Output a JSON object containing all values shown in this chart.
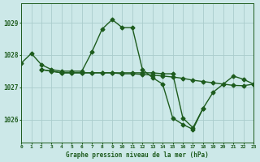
{
  "title": "Graphe pression niveau de la mer (hPa)",
  "bg_color": "#cce8e8",
  "grid_color": "#aacccc",
  "line_color": "#1e5c1e",
  "marker": "D",
  "marker_size": 2.5,
  "line_width": 1.0,
  "xlim": [
    0,
    23
  ],
  "ylim": [
    1025.3,
    1029.6
  ],
  "yticks": [
    1026,
    1027,
    1028,
    1029
  ],
  "xticks": [
    0,
    1,
    2,
    3,
    4,
    5,
    6,
    7,
    8,
    9,
    10,
    11,
    12,
    13,
    14,
    15,
    16,
    17,
    18,
    19,
    20,
    21,
    22,
    23
  ],
  "series": [
    {
      "x": [
        0,
        1,
        2,
        3,
        4,
        5,
        6,
        7,
        8,
        9,
        10,
        11,
        12,
        13,
        14,
        15,
        16,
        17,
        18
      ],
      "y": [
        1027.75,
        1028.05,
        1027.7,
        1027.55,
        1027.5,
        1027.5,
        1027.5,
        1028.1,
        1028.8,
        1029.1,
        1028.85,
        1028.85,
        1027.55,
        1027.3,
        1027.1,
        1026.05,
        1025.85,
        1025.7,
        1026.35
      ]
    },
    {
      "x": [
        2,
        3,
        4,
        5,
        6,
        7,
        8,
        9,
        10,
        11,
        12,
        13,
        14,
        15,
        16,
        17,
        18,
        19,
        20,
        21,
        22,
        23
      ],
      "y": [
        1027.55,
        1027.5,
        1027.45,
        1027.45,
        1027.45,
        1027.45,
        1027.45,
        1027.45,
        1027.42,
        1027.42,
        1027.4,
        1027.38,
        1027.35,
        1027.32,
        1027.28,
        1027.22,
        1027.18,
        1027.14,
        1027.1,
        1027.06,
        1027.05,
        1027.1
      ]
    },
    {
      "x": [
        2,
        3,
        4,
        5,
        6,
        7,
        8,
        9,
        10,
        11,
        12,
        13,
        14,
        15,
        16,
        17,
        18,
        19,
        20,
        21,
        22,
        23
      ],
      "y": [
        1027.55,
        1027.5,
        1027.45,
        1027.45,
        1027.45,
        1027.45,
        1027.45,
        1027.45,
        1027.45,
        1027.45,
        1027.45,
        1027.45,
        1027.42,
        1027.42,
        1026.05,
        1025.75,
        1026.35,
        1026.85,
        1027.1,
        1027.35,
        1027.25,
        1027.1
      ]
    }
  ]
}
